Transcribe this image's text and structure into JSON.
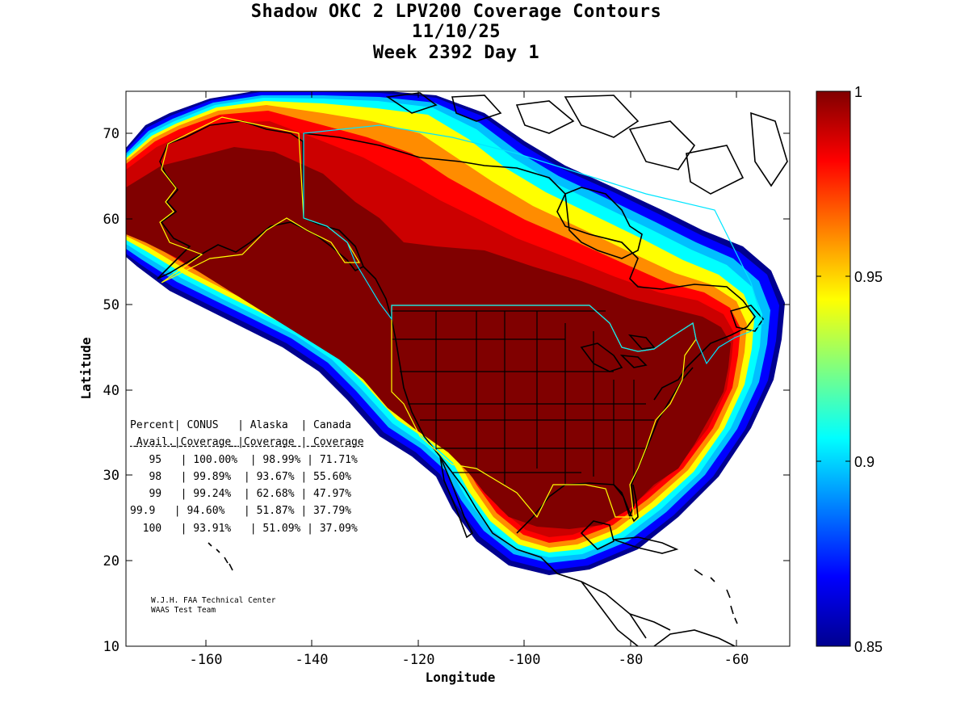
{
  "title": {
    "line1": "Shadow OKC 2 LPV200 Coverage Contours",
    "line2": "11/10/25",
    "line3": "Week 2392 Day 1"
  },
  "axes": {
    "xlabel": "Longitude",
    "ylabel": "Latitude",
    "xlim": [
      -175,
      -50
    ],
    "ylim": [
      10,
      75
    ],
    "xticks": [
      -160,
      -140,
      -120,
      -100,
      -80,
      -60
    ],
    "yticks": [
      10,
      20,
      30,
      40,
      50,
      60,
      70
    ]
  },
  "colorbar": {
    "ticks": [
      "1",
      "0.95",
      "0.9",
      "0.85"
    ],
    "range": [
      0.85,
      1.0
    ],
    "colormap": "jet"
  },
  "table": {
    "header1": [
      "Percent",
      "CONUS",
      "Alaska",
      "Canada"
    ],
    "header2": [
      "Avail.",
      "Coverage",
      "Coverage",
      "Coverage"
    ],
    "rows": [
      [
        "95",
        "100.00%",
        "98.99%",
        "71.71%"
      ],
      [
        "98",
        "99.89%",
        "93.67%",
        "55.60%"
      ],
      [
        "99",
        "99.24%",
        "62.68%",
        "47.97%"
      ],
      [
        "99.9",
        "94.60%",
        "51.87%",
        "37.79%"
      ],
      [
        "100",
        "93.91%",
        "51.09%",
        "37.09%"
      ]
    ]
  },
  "credit": {
    "line1": "W.J.H. FAA Technical Center",
    "line2": "WAAS Test Team"
  },
  "colors": {
    "max": "#800000",
    "red": "#ff0000",
    "orange": "#ff8c00",
    "yellow": "#ffff00",
    "cyan": "#00ffff",
    "blue": "#0000ff",
    "min": "#00008f",
    "region_outline_conus": "#ffff00",
    "region_outline_canada": "#00e5ff"
  }
}
